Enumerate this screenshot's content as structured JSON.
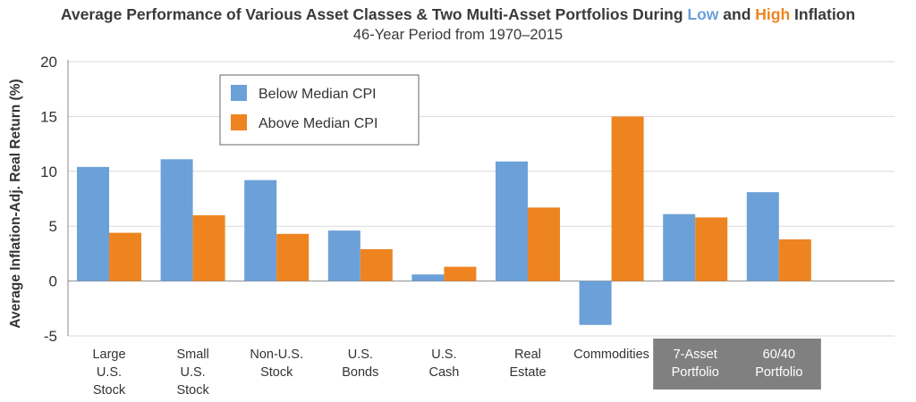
{
  "title_parts": {
    "prefix": "Average Performance of Various Asset Classes & Two Multi-Asset Portfolios During ",
    "low": "Low",
    "and": " and ",
    "high": "High",
    "suffix": " Inflation"
  },
  "subtitle": "46-Year Period from 1970–2015",
  "colors": {
    "below": "#6ba0d8",
    "above": "#ee8420",
    "portfolio_box": "#808080",
    "low_word": "#6ba0d8",
    "high_word": "#ee8420"
  },
  "chart_data": {
    "type": "bar",
    "ylabel": "Average Inflation-Adj. Real Return (%)",
    "xlabel": "",
    "ylim": [
      -5,
      20
    ],
    "yticks": [
      20,
      15,
      10,
      5,
      0,
      -5
    ],
    "grid": true,
    "legend_placement": "top-left",
    "categories": [
      [
        "Large",
        "U.S.",
        "Stock"
      ],
      [
        "Small",
        "U.S.",
        "Stock"
      ],
      [
        "Non-U.S.",
        "Stock"
      ],
      [
        "U.S.",
        "Bonds"
      ],
      [
        "U.S.",
        "Cash"
      ],
      [
        "Real",
        "Estate"
      ],
      [
        "Commodities"
      ],
      [
        "7-Asset",
        "Portfolio"
      ],
      [
        "60/40",
        "Portfolio"
      ]
    ],
    "boxed_categories": [
      7,
      8
    ],
    "series": [
      {
        "name": "Below Median CPI",
        "values": [
          10.4,
          11.1,
          9.2,
          4.6,
          0.6,
          10.9,
          -4.0,
          6.1,
          8.1
        ]
      },
      {
        "name": "Above Median CPI",
        "values": [
          4.4,
          6.0,
          4.3,
          2.9,
          1.3,
          6.7,
          15.0,
          5.8,
          3.8
        ]
      }
    ]
  }
}
